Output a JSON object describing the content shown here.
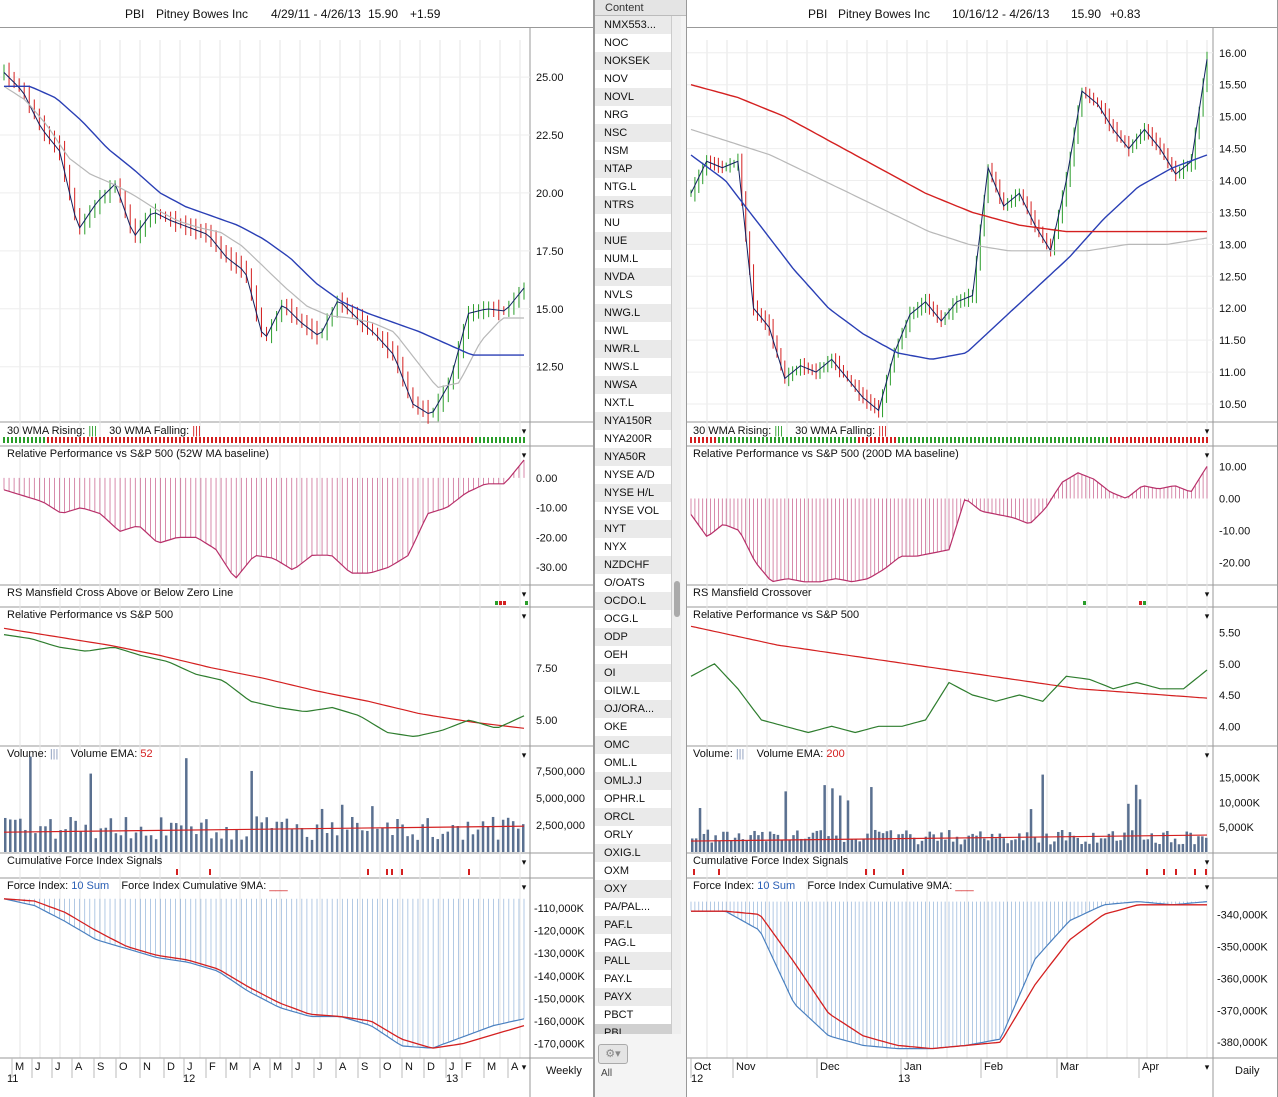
{
  "left": {
    "header": {
      "symbol": "PBI",
      "name": "Pitney Bowes Inc",
      "range": "4/29/11 - 4/26/13",
      "price": "15.90",
      "change": "+1.59"
    },
    "price_ticks": [
      "25.00",
      "22.50",
      "20.00",
      "17.50",
      "15.00",
      "12.50"
    ],
    "wma_label": {
      "rising": "30 WMA Rising:",
      "rising_mark": "|||",
      "falling": "30 WMA Falling:",
      "falling_mark": "|||"
    },
    "rp_label": "Relative Performance vs S&P 500 (52W MA baseline)",
    "rp_ticks": [
      "0.00",
      "-10.00",
      "-20.00",
      "-30.00"
    ],
    "rsm_label": "RS Mansfield Cross Above or Below Zero Line",
    "rel_label": "Relative Performance vs S&P 500",
    "rel_ticks": [
      "7.50",
      "5.00"
    ],
    "vol_label": {
      "volume": "Volume:",
      "vol_mark": "|||",
      "ema": "Volume EMA:",
      "ema_val": "52"
    },
    "vol_ticks": [
      "7,500,000",
      "5,000,000",
      "2,500,000"
    ],
    "cfi_label": "Cumulative Force Index Signals",
    "fi_label": {
      "fi": "Force Index:",
      "fi_val": "10 Sum",
      "cum": "Force Index Cumulative 9MA:"
    },
    "fi_ticks": [
      "-110,000K",
      "-120,000K",
      "-130,000K",
      "-140,000K",
      "-150,000K",
      "-160,000K",
      "-170,000K"
    ],
    "months": [
      "M",
      "J",
      "J",
      "A",
      "S",
      "O",
      "N",
      "D",
      "J",
      "F",
      "M",
      "A",
      "M",
      "J",
      "J",
      "A",
      "S",
      "O",
      "N",
      "D",
      "J",
      "F",
      "M",
      "A"
    ],
    "years": [
      "11",
      "12",
      "13"
    ],
    "period": "Weekly"
  },
  "right": {
    "header": {
      "symbol": "PBI",
      "name": "Pitney Bowes Inc",
      "range": "10/16/12 - 4/26/13",
      "price": "15.90",
      "change": "+0.83"
    },
    "price_ticks": [
      "16.00",
      "15.50",
      "15.00",
      "14.50",
      "14.00",
      "13.50",
      "13.00",
      "12.50",
      "12.00",
      "11.50",
      "11.00",
      "10.50"
    ],
    "wma_label": {
      "rising": "30 WMA Rising:",
      "rising_mark": "|||",
      "falling": "30 WMA Falling:",
      "falling_mark": "|||"
    },
    "rp_label": "Relative Performance vs S&P 500 (200D MA baseline)",
    "rp_ticks": [
      "10.00",
      "0.00",
      "-10.00",
      "-20.00"
    ],
    "rsm_label": "RS Mansfield Crossover",
    "rel_label": "Relative Performance vs S&P 500",
    "rel_ticks": [
      "5.50",
      "5.00",
      "4.50",
      "4.00"
    ],
    "vol_label": {
      "volume": "Volume:",
      "vol_mark": "|||",
      "ema": "Volume EMA:",
      "ema_val": "200"
    },
    "vol_ticks": [
      "15,000K",
      "10,000K",
      "5,000K"
    ],
    "cfi_label": "Cumulative Force Index Signals",
    "fi_label": {
      "fi": "Force Index:",
      "fi_val": "10 Sum",
      "cum": "Force Index Cumulative 9MA:"
    },
    "fi_ticks": [
      "-340,000K",
      "-350,000K",
      "-360,000K",
      "-370,000K",
      "-380,000K"
    ],
    "months": [
      "Oct",
      "Nov",
      "Dec",
      "Jan",
      "Feb",
      "Mar",
      "Apr"
    ],
    "years": [
      "12",
      "13"
    ],
    "period": "Daily"
  },
  "content_list": {
    "header": "Content",
    "items": [
      "NMX553...",
      "NOC",
      "NOKSEK",
      "NOV",
      "NOVL",
      "NRG",
      "NSC",
      "NSM",
      "NTAP",
      "NTG.L",
      "NTRS",
      "NU",
      "NUE",
      "NUM.L",
      "NVDA",
      "NVLS",
      "NWG.L",
      "NWL",
      "NWR.L",
      "NWS.L",
      "NWSA",
      "NXT.L",
      "NYA150R",
      "NYA200R",
      "NYA50R",
      "NYSE A/D",
      "NYSE H/L",
      "NYSE VOL",
      "NYT",
      "NYX",
      "NZDCHF",
      "O/OATS",
      "OCDO.L",
      "OCG.L",
      "ODP",
      "OEH",
      "OI",
      "OILW.L",
      "OJ/ORA...",
      "OKE",
      "OMC",
      "OML.L",
      "OMLJ.J",
      "OPHR.L",
      "ORCL",
      "ORLY",
      "OXIG.L",
      "OXM",
      "OXY",
      "PA/PAL...",
      "PAF.L",
      "PAG.L",
      "PALL",
      "PAY.L",
      "PAYX",
      "PBCT",
      "PBI"
    ],
    "selected": "PBI",
    "all_label": "All"
  },
  "colors": {
    "up_bar": "#2a9d2a",
    "down_bar": "#d42020",
    "ma_blue": "#2a3fb5",
    "ma_gray": "#b8b8b8",
    "ma_red": "#d42020",
    "rp_fill": "#b8306a",
    "rel_line": "#2e7d2e",
    "vol_bar": "#5a7090",
    "fi_line": "#4a80c0"
  }
}
